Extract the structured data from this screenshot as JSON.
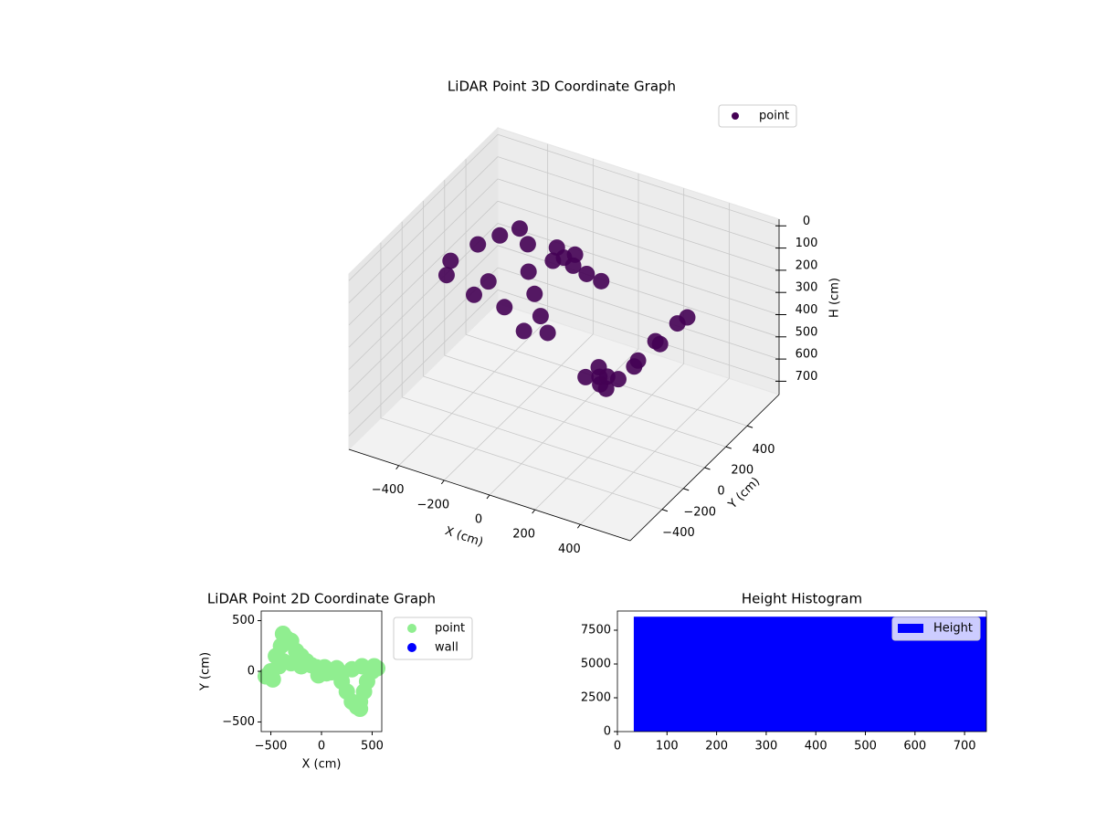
{
  "chart_data": [
    {
      "type": "scatter3d",
      "title": "LiDAR Point 3D Coordinate Graph",
      "xlabel": "X (cm)",
      "ylabel": "Y (cm)",
      "zlabel": "H (cm)",
      "grid": true,
      "xlim": [
        -620,
        620
      ],
      "ylim": [
        -700,
        700
      ],
      "zlim": [
        760,
        -30
      ],
      "xticks": [
        {
          "value": -400,
          "label": "−400"
        },
        {
          "value": -200,
          "label": "−200"
        },
        0,
        200,
        400
      ],
      "yticks": [
        {
          "value": -400,
          "label": "−400"
        },
        {
          "value": -200,
          "label": "−200"
        },
        0,
        200,
        400
      ],
      "zticks": [
        0,
        100,
        200,
        300,
        400,
        500,
        600,
        700
      ],
      "series": [
        {
          "name": "point",
          "color": "#440154",
          "x": [
            -500,
            -480,
            -450,
            -400,
            -350,
            -300,
            -250,
            -200,
            -150,
            -100,
            -50,
            0,
            50,
            30,
            -30,
            100,
            150,
            200,
            250,
            300,
            350,
            380,
            420,
            450,
            500,
            520,
            400,
            300,
            200,
            100,
            -380,
            -420,
            -300,
            -200
          ],
          "y": [
            0,
            -80,
            150,
            250,
            330,
            300,
            200,
            150,
            100,
            60,
            40,
            0,
            -20,
            40,
            -40,
            0,
            30,
            -100,
            -200,
            -300,
            -350,
            -300,
            -200,
            -100,
            0,
            50,
            50,
            20,
            -20,
            -10,
            100,
            50,
            80,
            50
          ],
          "z": [
            200,
            220,
            180,
            170,
            160,
            200,
            260,
            320,
            380,
            420,
            10,
            20,
            30,
            15,
            25,
            60,
            90,
            400,
            380,
            350,
            330,
            300,
            250,
            200,
            150,
            140,
            300,
            420,
            480,
            520,
            300,
            350,
            380,
            440
          ]
        }
      ]
    },
    {
      "type": "scatter",
      "title": "LiDAR Point 2D Coordinate Graph",
      "xlabel": "X (cm)",
      "ylabel": "Y (cm)",
      "xlim": [
        -595,
        595
      ],
      "ylim": [
        -595,
        595
      ],
      "xticks": [
        {
          "value": -500,
          "label": "−500"
        },
        0,
        500
      ],
      "yticks": [
        {
          "value": -500,
          "label": "−500"
        },
        0,
        500
      ],
      "series": [
        {
          "name": "point",
          "color": "#90ee90",
          "x": [
            -500,
            -480,
            -450,
            -400,
            -350,
            -300,
            -250,
            -200,
            -150,
            -100,
            -50,
            0,
            50,
            30,
            -30,
            100,
            150,
            200,
            250,
            300,
            350,
            380,
            420,
            450,
            500,
            520,
            400,
            300,
            200,
            100,
            -380,
            -420,
            -300,
            -200,
            -380,
            380,
            550,
            -550
          ],
          "y": [
            0,
            -80,
            150,
            250,
            330,
            300,
            200,
            150,
            100,
            60,
            40,
            0,
            -20,
            40,
            -40,
            0,
            30,
            -100,
            -200,
            -300,
            -350,
            -300,
            -200,
            -100,
            0,
            50,
            50,
            20,
            -20,
            -10,
            100,
            50,
            80,
            50,
            370,
            -370,
            30,
            -50
          ]
        },
        {
          "name": "wall",
          "color": "#0000ff",
          "x": [],
          "y": []
        }
      ]
    },
    {
      "type": "histogram",
      "title": "Height Histogram",
      "xlim": [
        0,
        744
      ],
      "ylim": [
        0,
        8920
      ],
      "xticks": [
        0,
        100,
        200,
        300,
        400,
        500,
        600,
        700
      ],
      "yticks": [
        0,
        2500,
        5000,
        7500
      ],
      "bins": [
        33,
        744
      ],
      "series": [
        {
          "name": "Height",
          "color": "#0000ff",
          "values": [
            8500
          ]
        }
      ]
    }
  ]
}
